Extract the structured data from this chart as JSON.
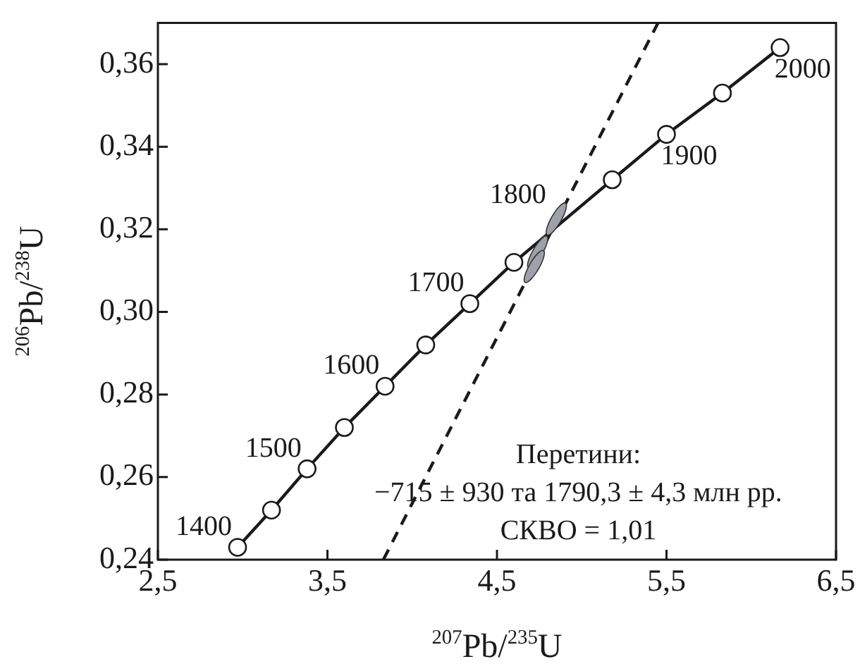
{
  "chart_data": {
    "type": "line",
    "xlabel": "$^{207}$Pb/$^{235}$U",
    "ylabel": "$^{206}$Pb/$^{238}$U",
    "xlim": [
      2.5,
      6.5
    ],
    "ylim": [
      0.24,
      0.37
    ],
    "xticks": [
      {
        "value": 2.5,
        "label": "2,5"
      },
      {
        "value": 3.5,
        "label": "3,5"
      },
      {
        "value": 4.5,
        "label": "4,5"
      },
      {
        "value": 5.5,
        "label": "5,5"
      },
      {
        "value": 6.5,
        "label": "6,5"
      }
    ],
    "yticks": [
      {
        "value": 0.24,
        "label": "0,24"
      },
      {
        "value": 0.26,
        "label": "0,26"
      },
      {
        "value": 0.28,
        "label": "0,28"
      },
      {
        "value": 0.3,
        "label": "0,30"
      },
      {
        "value": 0.32,
        "label": "0,32"
      },
      {
        "value": 0.34,
        "label": "0,34"
      },
      {
        "value": 0.36,
        "label": "0,36"
      }
    ],
    "grid": false,
    "legend": false,
    "series": [
      {
        "type": "line",
        "color": "#1a1a1a",
        "marker": "circle",
        "x": [
          2.97,
          3.17,
          3.38,
          3.6,
          3.84,
          4.08,
          4.34,
          4.6,
          4.89,
          5.18,
          5.5,
          5.83,
          6.17
        ],
        "values": [
          0.243,
          0.252,
          0.262,
          0.272,
          0.282,
          0.292,
          0.302,
          0.312,
          null,
          0.332,
          0.343,
          0.353,
          0.364
        ]
      },
      {
        "type": "line",
        "color": "#1a1a1a",
        "marker": "none",
        "line_style": "dashed",
        "x": [
          3.83,
          5.45
        ],
        "values": [
          0.24,
          0.37
        ]
      },
      {
        "type": "scatter",
        "color": "#9ea1aa",
        "x": [
          4.85,
          4.74,
          4.72
        ],
        "values": [
          0.3225,
          0.3145,
          0.311
        ]
      }
    ],
    "annotations": [
      {
        "text": "1400",
        "x": 2.97,
        "y": 0.243
      },
      {
        "text": "1500",
        "x": 3.38,
        "y": 0.262
      },
      {
        "text": "1600",
        "x": 3.84,
        "y": 0.282
      },
      {
        "text": "1700",
        "x": 4.34,
        "y": 0.302
      },
      {
        "text": "1800",
        "x": 4.89,
        "y": 0.322
      },
      {
        "text": "1900",
        "x": 5.5,
        "y": 0.343
      },
      {
        "text": "2000",
        "x": 6.17,
        "y": 0.364
      },
      "Перетини:",
      "−715 ± 930 та 1790,3 ± 4,3 млн рр.",
      "СКВО = 1,01"
    ]
  }
}
